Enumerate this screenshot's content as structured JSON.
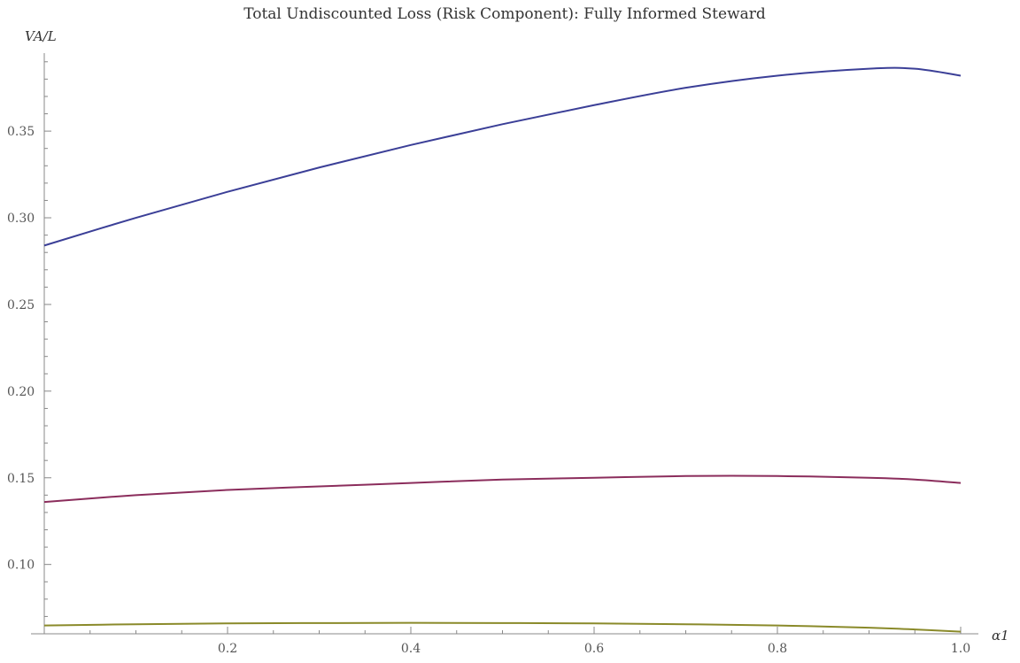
{
  "chart_data": {
    "type": "line",
    "title": "Total Undiscounted Loss (Risk Component): Fully Informed Steward",
    "xlabel": "α1",
    "ylabel": "VA/L",
    "xlim": [
      0.0,
      1.0
    ],
    "ylim": [
      0.06,
      0.395
    ],
    "x_ticks": [
      0.2,
      0.4,
      0.6,
      0.8,
      1.0
    ],
    "x_tick_labels": [
      "0.2",
      "0.4",
      "0.6",
      "0.8",
      "1.0"
    ],
    "y_ticks": [
      0.1,
      0.15,
      0.2,
      0.25,
      0.3,
      0.35
    ],
    "y_tick_labels": [
      "0.10",
      "0.15",
      "0.20",
      "0.25",
      "0.30",
      "0.35"
    ],
    "grid": false,
    "legend": "none",
    "x": [
      0.0,
      0.1,
      0.2,
      0.3,
      0.4,
      0.5,
      0.6,
      0.7,
      0.8,
      0.9,
      0.95,
      1.0
    ],
    "series": [
      {
        "color": "#3b3f97",
        "values": [
          0.284,
          0.3,
          0.315,
          0.329,
          0.342,
          0.354,
          0.365,
          0.375,
          0.382,
          0.386,
          0.386,
          0.382
        ]
      },
      {
        "color": "#8b2d5c",
        "values": [
          0.136,
          0.14,
          0.143,
          0.145,
          0.147,
          0.149,
          0.15,
          0.151,
          0.151,
          0.15,
          0.149,
          0.147
        ]
      },
      {
        "color": "#8a8a2a",
        "values": [
          0.0648,
          0.0655,
          0.066,
          0.0662,
          0.0663,
          0.0662,
          0.066,
          0.0655,
          0.0648,
          0.0635,
          0.0625,
          0.0612
        ]
      }
    ]
  }
}
